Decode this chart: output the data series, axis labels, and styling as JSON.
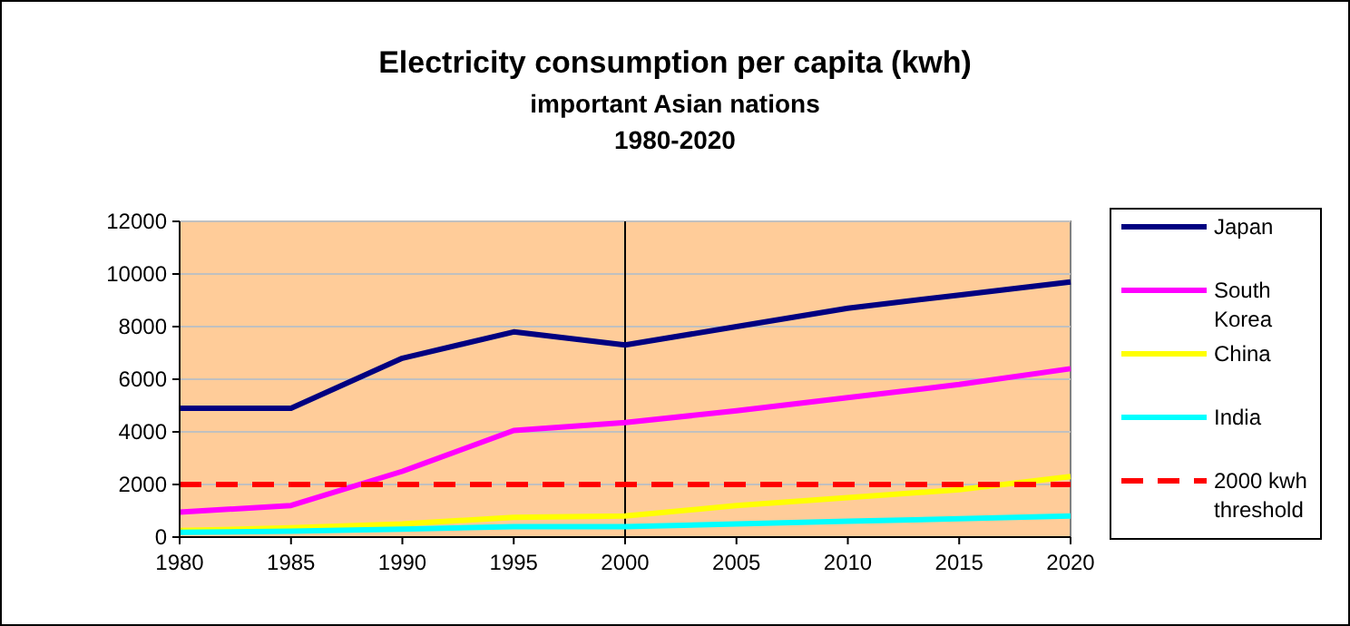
{
  "chart_data": {
    "type": "line",
    "title": "Electricity consumption per capita (kwh)",
    "subtitle": "important Asian nations\n1980-2020",
    "x": [
      1980,
      1985,
      1990,
      1995,
      2000,
      2005,
      2010,
      2015,
      2020
    ],
    "series": [
      {
        "name": "Japan",
        "color": "#000080",
        "values": [
          4900,
          4900,
          6800,
          7800,
          7300,
          8000,
          8700,
          9200,
          9700
        ]
      },
      {
        "name": "South Korea",
        "color": "#ff00ff",
        "values": [
          950,
          1200,
          2500,
          4050,
          4350,
          4800,
          5300,
          5800,
          6400
        ]
      },
      {
        "name": "China",
        "color": "#ffff00",
        "values": [
          250,
          350,
          500,
          750,
          800,
          1200,
          1500,
          1800,
          2300
        ]
      },
      {
        "name": "India",
        "color": "#00ffff",
        "values": [
          180,
          220,
          300,
          400,
          400,
          500,
          600,
          700,
          800
        ]
      },
      {
        "name": "2000 kwh threshold",
        "color": "#ff0000",
        "line_style": "dashed",
        "values": [
          2000,
          2000,
          2000,
          2000,
          2000,
          2000,
          2000,
          2000,
          2000
        ]
      }
    ],
    "xlim": [
      1980,
      2020
    ],
    "xticks": [
      1980,
      1985,
      1990,
      1995,
      2000,
      2005,
      2010,
      2015,
      2020
    ],
    "ylim": [
      0,
      12000
    ],
    "yticks": [
      0,
      2000,
      4000,
      6000,
      8000,
      10000,
      12000
    ],
    "ref_lines": [
      {
        "axis": "x",
        "value": 2000,
        "color": "#000000"
      }
    ],
    "grid": "y",
    "legend": "right",
    "marker": "none"
  }
}
